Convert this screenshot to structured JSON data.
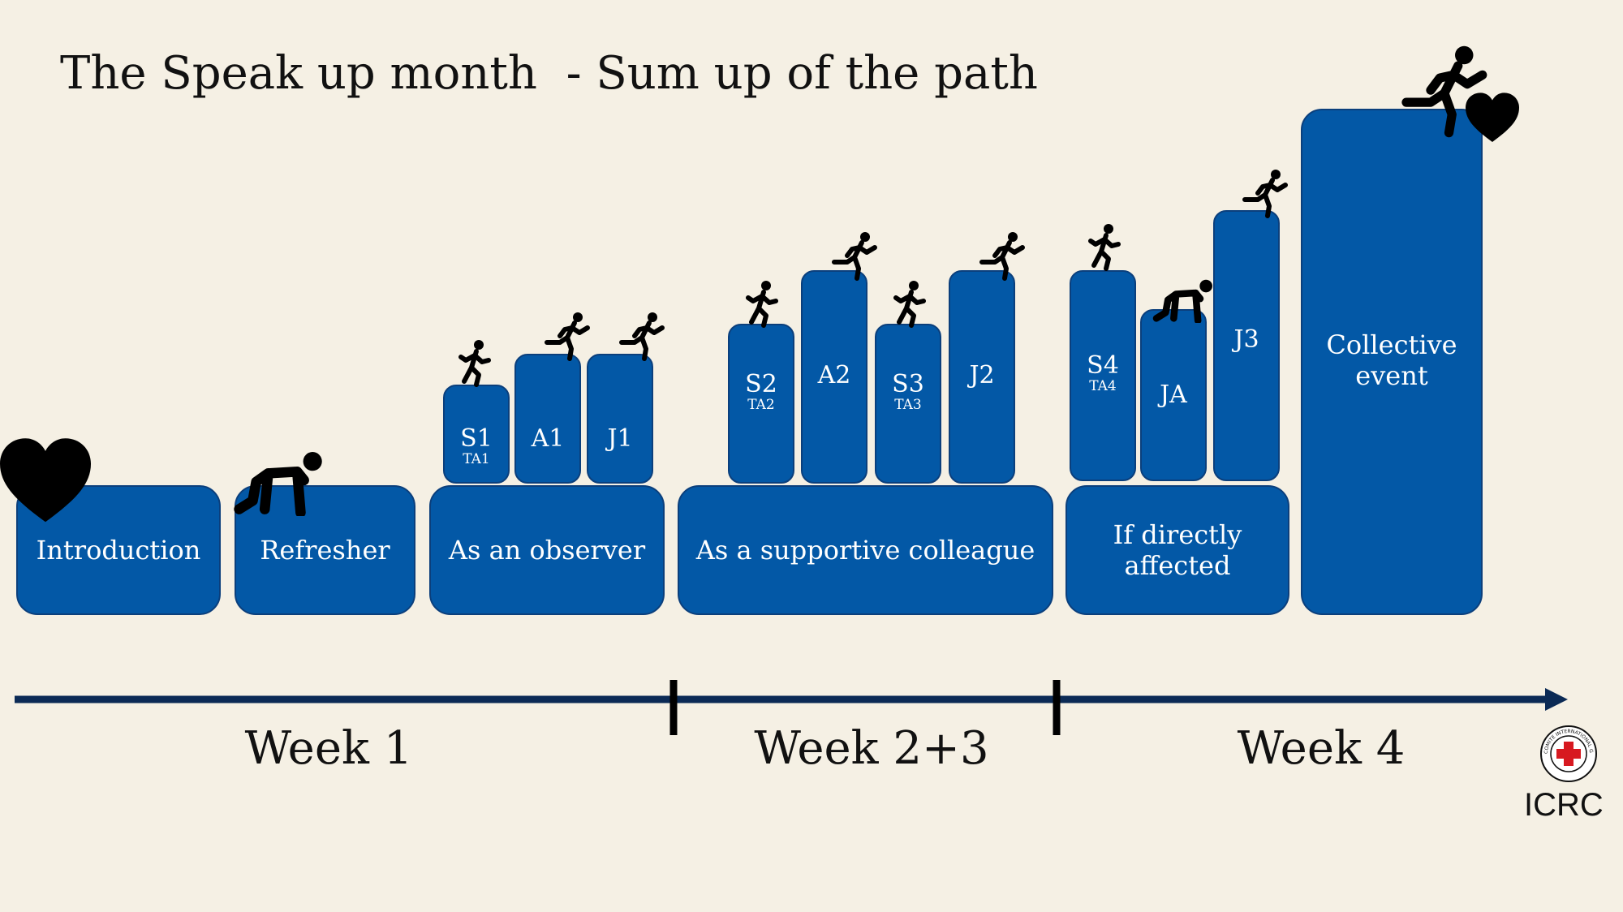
{
  "title": "The Speak up month  - Sum up of the path",
  "colors": {
    "box": "#0358a6",
    "box_border": "#0b3f7c",
    "background": "#f5f0e4"
  },
  "segments": {
    "introduction": "Introduction",
    "refresher": "Refresher",
    "observer": "As an observer",
    "supportive": "As a supportive colleague",
    "affected_line1": "If directly",
    "affected_line2": "affected",
    "collective_line1": "Collective",
    "collective_line2": "event"
  },
  "steps": {
    "s1": {
      "label": "S1",
      "sub": "TA1"
    },
    "a1": {
      "label": "A1"
    },
    "j1": {
      "label": "J1"
    },
    "s2": {
      "label": "S2",
      "sub": "TA2"
    },
    "a2": {
      "label": "A2"
    },
    "s3": {
      "label": "S3",
      "sub": "TA3"
    },
    "j2": {
      "label": "J2"
    },
    "s4": {
      "label": "S4",
      "sub": "TA4"
    },
    "ja": {
      "label": "JA"
    },
    "j3": {
      "label": "J3"
    }
  },
  "weeks": [
    "Week 1",
    "Week 2+3",
    "Week 4"
  ],
  "logo": {
    "text": "ICRC",
    "seal_text": "COMITE INTERNATIONAL GENEVE"
  },
  "icons": [
    "heart-icon",
    "crouching-runner-icon",
    "runner-icon",
    "climbing-runner-icon",
    "cross-logo-icon"
  ]
}
